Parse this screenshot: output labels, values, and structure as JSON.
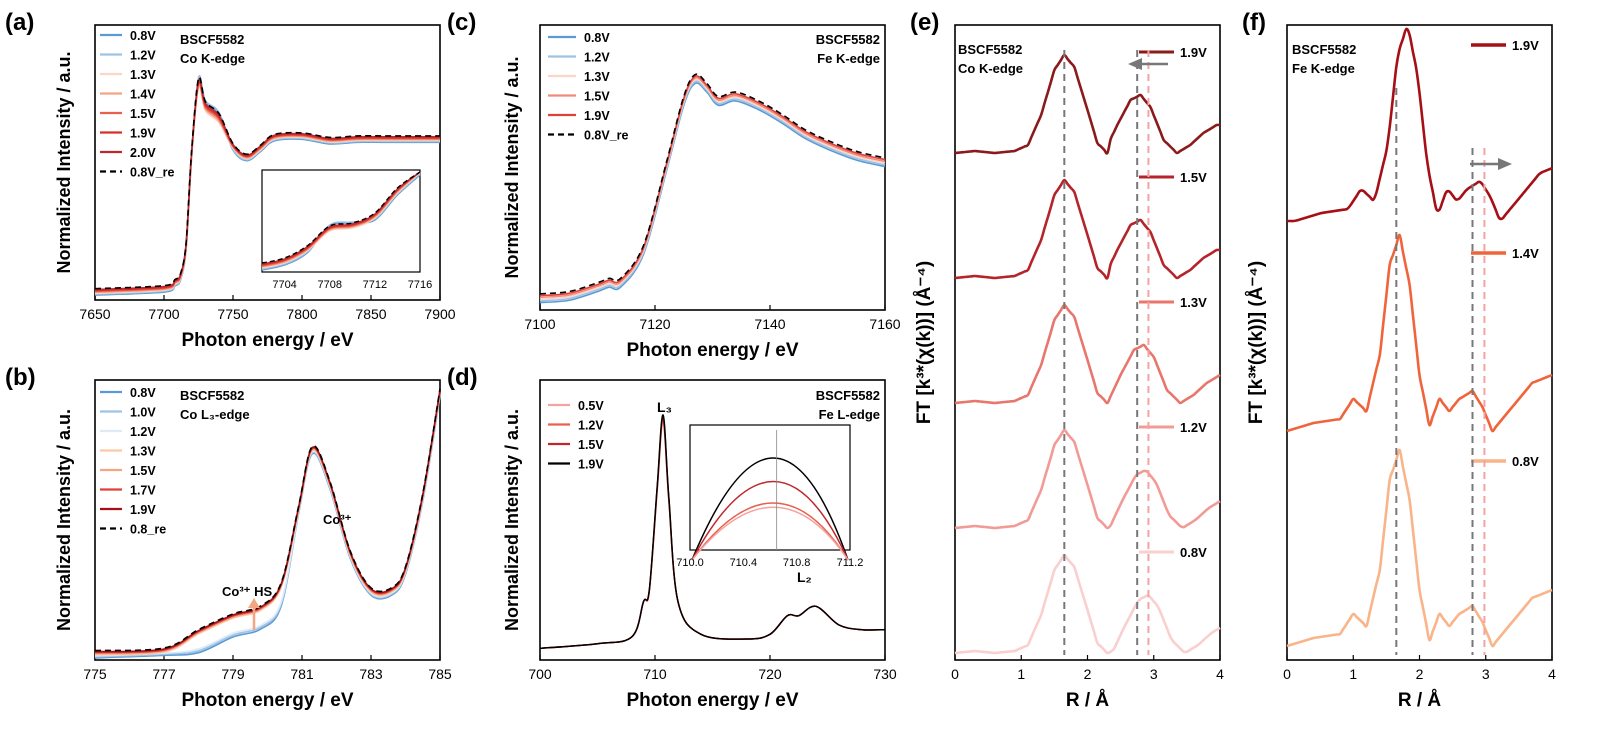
{
  "chart_data": [
    {
      "panel_label": "(a)",
      "type": "line",
      "xlabel": "Photon energy / eV",
      "ylabel": "Normalized Intensity / a.u.",
      "xlim": [
        7650,
        7900
      ],
      "xticks": [
        "7650",
        "7700",
        "7750",
        "7800",
        "7850",
        "7900"
      ],
      "annotation_lines": [
        "BSCF5582",
        "Co K-edge"
      ],
      "series": [
        {
          "name": "0.8V",
          "color": "#5b9bd5",
          "style": "solid"
        },
        {
          "name": "1.2V",
          "color": "#9dc3e6",
          "style": "solid"
        },
        {
          "name": "1.3V",
          "color": "#fbd5c8",
          "style": "solid"
        },
        {
          "name": "1.4V",
          "color": "#f4a582",
          "style": "solid"
        },
        {
          "name": "1.5V",
          "color": "#e8614d",
          "style": "solid"
        },
        {
          "name": "1.9V",
          "color": "#d6302b",
          "style": "solid"
        },
        {
          "name": "2.0V",
          "color": "#c0272d",
          "style": "solid"
        },
        {
          "name": "0.8V_re",
          "color": "#000000",
          "style": "dashed"
        }
      ],
      "x": [
        7650,
        7700,
        7708,
        7712,
        7716,
        7720,
        7725,
        7730,
        7740,
        7750,
        7760,
        7770,
        7780,
        7800,
        7820,
        7840,
        7860,
        7880,
        7900
      ],
      "y": [
        0.0,
        0.02,
        0.06,
        0.1,
        0.3,
        0.9,
        1.35,
        1.2,
        1.12,
        0.95,
        0.88,
        0.94,
        1.01,
        1.02,
        0.99,
        1.0,
        1.0,
        1.0,
        1.0
      ],
      "inset": {
        "xlim": [
          7702,
          7716
        ],
        "xticks": [
          "7704",
          "7708",
          "7712",
          "7716"
        ],
        "x": [
          7702,
          7704,
          7706,
          7708,
          7710,
          7712,
          7714,
          7716
        ],
        "y": [
          0.05,
          0.1,
          0.22,
          0.42,
          0.45,
          0.55,
          0.8,
          1.0
        ]
      }
    },
    {
      "panel_label": "(b)",
      "type": "line",
      "xlabel": "Photon energy / eV",
      "ylabel": "Normalized Intensity / a.u.",
      "xlim": [
        775,
        785
      ],
      "xticks": [
        "775",
        "777",
        "779",
        "781",
        "783",
        "785"
      ],
      "annotation_lines": [
        "BSCF5582",
        "Co L₃-edge"
      ],
      "annotations": [
        "Co³⁺ HS",
        "Co³⁺"
      ],
      "series": [
        {
          "name": "0.8V",
          "color": "#5b9bd5",
          "style": "solid"
        },
        {
          "name": "1.0V",
          "color": "#9dc3e6",
          "style": "solid"
        },
        {
          "name": "1.2V",
          "color": "#deebf7",
          "style": "solid"
        },
        {
          "name": "1.3V",
          "color": "#fbc9a8",
          "style": "solid"
        },
        {
          "name": "1.5V",
          "color": "#f4a582",
          "style": "solid"
        },
        {
          "name": "1.7V",
          "color": "#e0403a",
          "style": "solid"
        },
        {
          "name": "1.9V",
          "color": "#a50f15",
          "style": "solid"
        },
        {
          "name": "0.8_re",
          "color": "#000000",
          "style": "dashed"
        }
      ],
      "x": [
        775,
        777,
        778,
        779,
        779.8,
        780.4,
        780.9,
        781.3,
        781.8,
        782.4,
        783,
        783.6,
        784,
        784.5,
        785
      ],
      "y": [
        0.0,
        0.01,
        0.04,
        0.1,
        0.13,
        0.22,
        0.55,
        0.78,
        0.65,
        0.38,
        0.24,
        0.24,
        0.32,
        0.6,
        1.0
      ]
    },
    {
      "panel_label": "(c)",
      "type": "line",
      "xlabel": "Photon energy / eV",
      "ylabel": "Normalized Intensity / a.u.",
      "xlim": [
        7100,
        7160
      ],
      "xticks": [
        "7100",
        "7120",
        "7140",
        "7160"
      ],
      "annotation_lines": [
        "BSCF5582",
        "Fe K-edge"
      ],
      "series": [
        {
          "name": "0.8V",
          "color": "#5b9bd5",
          "style": "solid"
        },
        {
          "name": "1.2V",
          "color": "#9dc3e6",
          "style": "solid"
        },
        {
          "name": "1.3V",
          "color": "#fbd5c8",
          "style": "solid"
        },
        {
          "name": "1.5V",
          "color": "#f08a7a",
          "style": "solid"
        },
        {
          "name": "1.9V",
          "color": "#e0403a",
          "style": "solid"
        },
        {
          "name": "0.8V_re",
          "color": "#000000",
          "style": "dashed"
        }
      ],
      "x": [
        7100,
        7105,
        7110,
        7112,
        7114,
        7118,
        7122,
        7125,
        7127,
        7129,
        7131,
        7134,
        7138,
        7142,
        7146,
        7150,
        7155,
        7160
      ],
      "y": [
        0.0,
        0.01,
        0.05,
        0.07,
        0.07,
        0.22,
        0.6,
        0.9,
        1.0,
        0.96,
        0.9,
        0.92,
        0.88,
        0.82,
        0.75,
        0.7,
        0.65,
        0.62
      ]
    },
    {
      "panel_label": "(d)",
      "type": "line",
      "xlabel": "Photon energy / eV",
      "ylabel": "Normalized Intensity / a.u.",
      "xlim": [
        700,
        730
      ],
      "xticks": [
        "700",
        "710",
        "720",
        "730"
      ],
      "annotation_lines": [
        "BSCF5582",
        "Fe L-edge"
      ],
      "annotations": [
        "L₃",
        "L₂"
      ],
      "series": [
        {
          "name": "0.5V",
          "color": "#f4a3a3",
          "style": "solid"
        },
        {
          "name": "1.2V",
          "color": "#e8614d",
          "style": "solid"
        },
        {
          "name": "1.5V",
          "color": "#c0272d",
          "style": "solid"
        },
        {
          "name": "1.9V",
          "color": "#000000",
          "style": "solid"
        }
      ],
      "x": [
        700,
        705,
        708,
        709,
        709.5,
        710.2,
        710.7,
        711.2,
        712,
        714,
        718,
        720,
        721.5,
        722.5,
        724,
        726,
        728,
        730
      ],
      "y": [
        0.0,
        0.02,
        0.05,
        0.2,
        0.25,
        0.7,
        1.0,
        0.65,
        0.2,
        0.06,
        0.04,
        0.06,
        0.14,
        0.14,
        0.18,
        0.1,
        0.08,
        0.08
      ],
      "inset": {
        "xlim": [
          710.0,
          711.2
        ],
        "xticks": [
          "710.0",
          "710.4",
          "710.8",
          "711.2"
        ],
        "series_peaks": [
          {
            "name": "1.9V",
            "value": 1.0
          },
          {
            "name": "1.5V",
            "value": 0.78
          },
          {
            "name": "1.2V",
            "value": 0.58
          },
          {
            "name": "0.5V",
            "value": 0.54
          }
        ]
      }
    },
    {
      "panel_label": "(e)",
      "type": "line",
      "xlabel": "R / Å",
      "ylabel": "FT [k³*(χ(k))] (Å⁻⁴)",
      "xlim": [
        0,
        4
      ],
      "xticks": [
        "0",
        "1",
        "2",
        "3",
        "4"
      ],
      "annotation_lines": [
        "BSCF5582",
        "Co K-edge"
      ],
      "reference_lines_R": [
        1.65,
        2.75,
        2.92
      ],
      "series": [
        {
          "name": "1.9V",
          "color": "#8b1a1a",
          "peak1_R": 1.65,
          "peak2_R": 2.8
        },
        {
          "name": "1.5V",
          "color": "#b5242a",
          "peak1_R": 1.62,
          "peak2_R": 2.8
        },
        {
          "name": "1.3V",
          "color": "#e8766d",
          "peak1_R": 1.62,
          "peak2_R": 2.85
        },
        {
          "name": "1.2V",
          "color": "#f29b96",
          "peak1_R": 1.62,
          "peak2_R": 2.88
        },
        {
          "name": "0.8V",
          "color": "#f9cfcf",
          "peak1_R": 1.65,
          "peak2_R": 2.92
        }
      ],
      "profile": {
        "R": [
          0,
          0.3,
          0.6,
          0.9,
          1.1,
          1.3,
          1.5,
          1.65,
          1.8,
          2.0,
          2.15,
          2.3,
          2.5,
          2.7,
          2.85,
          3.0,
          3.2,
          3.4,
          3.6,
          3.8,
          4.0
        ],
        "amp": [
          0.02,
          0.04,
          0.02,
          0.04,
          0.1,
          0.4,
          0.85,
          1.0,
          0.88,
          0.45,
          0.12,
          0.02,
          0.3,
          0.55,
          0.6,
          0.48,
          0.15,
          0.02,
          0.1,
          0.22,
          0.3
        ]
      }
    },
    {
      "panel_label": "(f)",
      "type": "line",
      "xlabel": "R / Å",
      "ylabel": "FT [k³*(χ(k))] (Å⁻⁴)",
      "xlim": [
        0,
        4
      ],
      "xticks": [
        "0",
        "1",
        "2",
        "3",
        "4"
      ],
      "annotation_lines": [
        "BSCF5582",
        "Fe K-edge"
      ],
      "reference_lines_R": [
        1.65,
        2.8,
        2.98
      ],
      "series": [
        {
          "name": "1.9V",
          "color": "#a50f15"
        },
        {
          "name": "1.4V",
          "color": "#f0643c"
        },
        {
          "name": "0.8V",
          "color": "#f9b48a"
        }
      ],
      "profile": {
        "R": [
          0,
          0.4,
          0.8,
          1.0,
          1.2,
          1.4,
          1.55,
          1.7,
          1.85,
          2.0,
          2.15,
          2.3,
          2.45,
          2.6,
          2.8,
          2.95,
          3.1,
          3.3,
          3.5,
          3.7,
          4.0
        ],
        "amp": [
          0.02,
          0.06,
          0.08,
          0.18,
          0.12,
          0.4,
          0.85,
          1.0,
          0.75,
          0.3,
          0.05,
          0.18,
          0.12,
          0.18,
          0.22,
          0.14,
          0.02,
          0.1,
          0.18,
          0.26,
          0.3
        ]
      }
    }
  ],
  "panels": {
    "a": {
      "label": "(a)"
    },
    "b": {
      "label": "(b)"
    },
    "c": {
      "label": "(c)"
    },
    "d": {
      "label": "(d)"
    },
    "e": {
      "label": "(e)"
    },
    "f": {
      "label": "(f)"
    }
  }
}
